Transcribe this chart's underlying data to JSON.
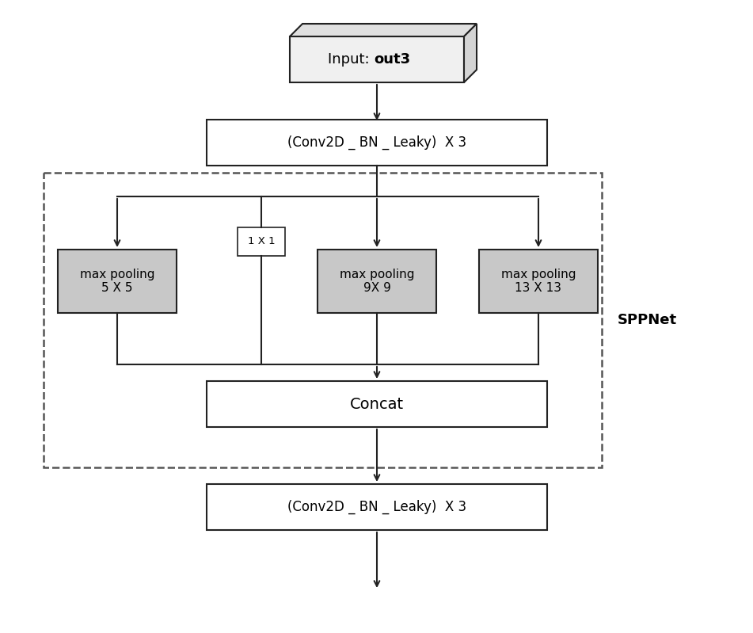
{
  "bg_color": "#ffffff",
  "box_color_white": "#ffffff",
  "box_color_gray": "#c8c8c8",
  "box_edge_color": "#222222",
  "arrow_color": "#222222",
  "dashed_rect_color": "#555555",
  "text_color": "#000000",
  "sppnet_label": "SPPNet",
  "input_label_plain": "Input: ",
  "input_label_bold": "out3",
  "conv1_label": "(Conv2D _ BN _ Leaky)  X 3",
  "pool5_label": "max pooling\n5 X 5",
  "pool9_label": "max pooling\n9X 9",
  "pool13_label": "max pooling\n13 X 13",
  "pool1x1_label": "1 X 1",
  "concat_label": "Concat",
  "conv2_label": "(Conv2D _ BN _ Leaky)  X 3",
  "figw": 9.51,
  "figh": 7.99,
  "dpi": 100
}
